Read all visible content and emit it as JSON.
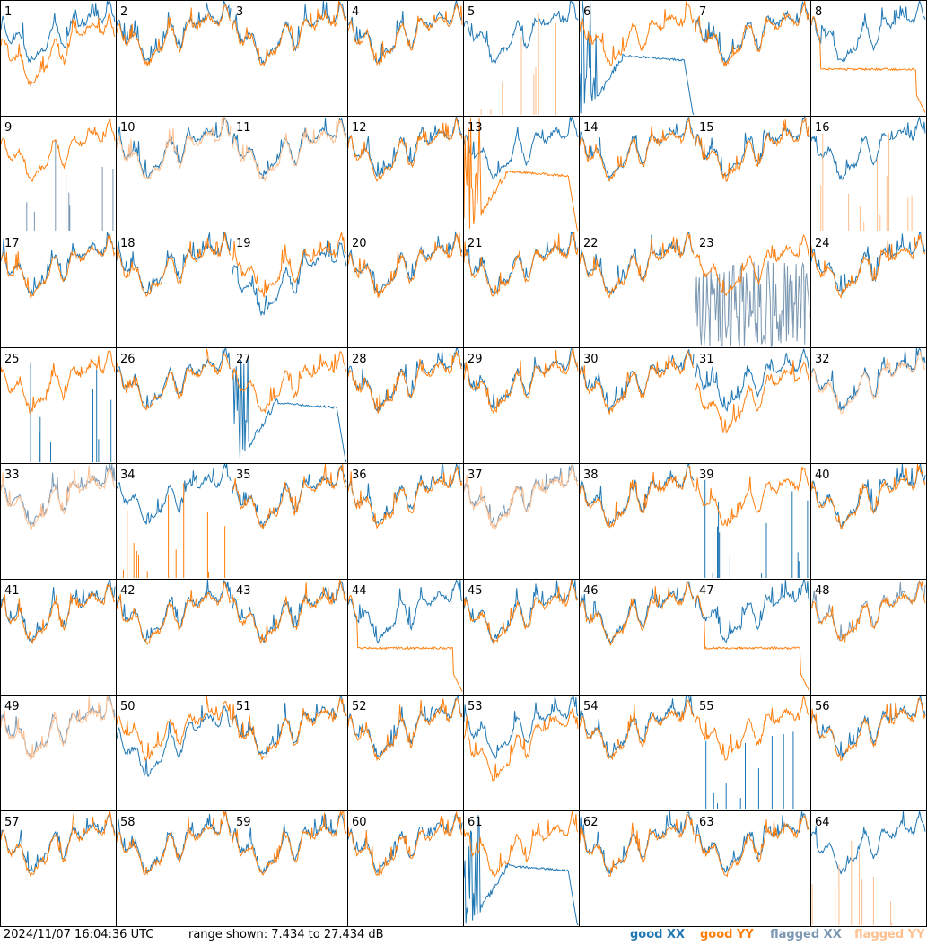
{
  "footer": {
    "timestamp": "2024/11/07 16:04:36 UTC",
    "range_text": "range shown: 7.434 to 27.434 dB"
  },
  "legend": [
    {
      "label": "good XX",
      "color": "#1f77b4"
    },
    {
      "label": "good YY",
      "color": "#ff7f0e"
    },
    {
      "label": "flagged XX",
      "color": "#7b98b3"
    },
    {
      "label": "flagged YY",
      "color": "#ffbf8f"
    }
  ],
  "chart_data": {
    "type": "line",
    "grid": "8x8 small multiples",
    "ylim": [
      7.434,
      27.434
    ],
    "yunit": "dB",
    "panels": [
      {
        "id": "1",
        "xx": "normal",
        "yy": "low"
      },
      {
        "id": "2",
        "xx": "normal",
        "yy": "normal"
      },
      {
        "id": "3",
        "xx": "normal",
        "yy": "normal"
      },
      {
        "id": "4",
        "xx": "normal",
        "yy": "normal"
      },
      {
        "id": "5",
        "xx": "normal",
        "yy": "spikes-flagged"
      },
      {
        "id": "6",
        "xx": "decay",
        "yy": "normal"
      },
      {
        "id": "7",
        "xx": "normal",
        "yy": "normal"
      },
      {
        "id": "8",
        "xx": "normal",
        "yy": "flat"
      },
      {
        "id": "9",
        "xx": "spikes-flagged",
        "yy": "normal"
      },
      {
        "id": "10",
        "xx": "normal",
        "yy": "flagged"
      },
      {
        "id": "11",
        "xx": "normal",
        "yy": "flagged"
      },
      {
        "id": "12",
        "xx": "normal",
        "yy": "normal"
      },
      {
        "id": "13",
        "xx": "normal",
        "yy": "decay"
      },
      {
        "id": "14",
        "xx": "normal",
        "yy": "normal"
      },
      {
        "id": "15",
        "xx": "normal",
        "yy": "normal"
      },
      {
        "id": "16",
        "xx": "normal",
        "yy": "spikes-flagged"
      },
      {
        "id": "17",
        "xx": "normal",
        "yy": "normal"
      },
      {
        "id": "18",
        "xx": "normal",
        "yy": "normal"
      },
      {
        "id": "19",
        "xx": "low",
        "yy": "normal"
      },
      {
        "id": "20",
        "xx": "normal",
        "yy": "normal"
      },
      {
        "id": "21",
        "xx": "normal",
        "yy": "normal"
      },
      {
        "id": "22",
        "xx": "normal",
        "yy": "normal"
      },
      {
        "id": "23",
        "xx": "noise-flagged",
        "yy": "normal"
      },
      {
        "id": "24",
        "xx": "normal",
        "yy": "normal"
      },
      {
        "id": "25",
        "xx": "spikes",
        "yy": "normal"
      },
      {
        "id": "26",
        "xx": "normal",
        "yy": "normal"
      },
      {
        "id": "27",
        "xx": "decay",
        "yy": "normal"
      },
      {
        "id": "28",
        "xx": "normal",
        "yy": "normal"
      },
      {
        "id": "29",
        "xx": "normal",
        "yy": "normal"
      },
      {
        "id": "30",
        "xx": "normal",
        "yy": "normal"
      },
      {
        "id": "31",
        "xx": "normal",
        "yy": "low"
      },
      {
        "id": "32",
        "xx": "normal",
        "yy": "flagged"
      },
      {
        "id": "33",
        "xx": "flagged",
        "yy": "flagged"
      },
      {
        "id": "34",
        "xx": "normal",
        "yy": "spikes"
      },
      {
        "id": "35",
        "xx": "normal",
        "yy": "normal"
      },
      {
        "id": "36",
        "xx": "normal",
        "yy": "normal"
      },
      {
        "id": "37",
        "xx": "flagged",
        "yy": "flagged"
      },
      {
        "id": "38",
        "xx": "normal",
        "yy": "normal"
      },
      {
        "id": "39",
        "xx": "spikes",
        "yy": "normal"
      },
      {
        "id": "40",
        "xx": "normal",
        "yy": "normal"
      },
      {
        "id": "41",
        "xx": "normal",
        "yy": "normal"
      },
      {
        "id": "42",
        "xx": "normal",
        "yy": "normal"
      },
      {
        "id": "43",
        "xx": "normal",
        "yy": "normal"
      },
      {
        "id": "44",
        "xx": "normal",
        "yy": "flat"
      },
      {
        "id": "45",
        "xx": "normal",
        "yy": "normal"
      },
      {
        "id": "46",
        "xx": "normal",
        "yy": "normal"
      },
      {
        "id": "47",
        "xx": "normal",
        "yy": "flat"
      },
      {
        "id": "48",
        "xx": "flagged",
        "yy": "normal"
      },
      {
        "id": "49",
        "xx": "flagged",
        "yy": "flagged"
      },
      {
        "id": "50",
        "xx": "low",
        "yy": "normal"
      },
      {
        "id": "51",
        "xx": "normal",
        "yy": "normal"
      },
      {
        "id": "52",
        "xx": "normal",
        "yy": "normal"
      },
      {
        "id": "53",
        "xx": "normal",
        "yy": "low"
      },
      {
        "id": "54",
        "xx": "normal",
        "yy": "normal"
      },
      {
        "id": "55",
        "xx": "spikes",
        "yy": "normal"
      },
      {
        "id": "56",
        "xx": "normal",
        "yy": "normal"
      },
      {
        "id": "57",
        "xx": "normal",
        "yy": "normal"
      },
      {
        "id": "58",
        "xx": "normal",
        "yy": "normal"
      },
      {
        "id": "59",
        "xx": "normal",
        "yy": "normal"
      },
      {
        "id": "60",
        "xx": "normal",
        "yy": "normal"
      },
      {
        "id": "61",
        "xx": "decay",
        "yy": "normal"
      },
      {
        "id": "62",
        "xx": "normal",
        "yy": "normal"
      },
      {
        "id": "63",
        "xx": "normal",
        "yy": "normal"
      },
      {
        "id": "64",
        "xx": "normal",
        "yy": "spikes-flagged"
      }
    ]
  }
}
